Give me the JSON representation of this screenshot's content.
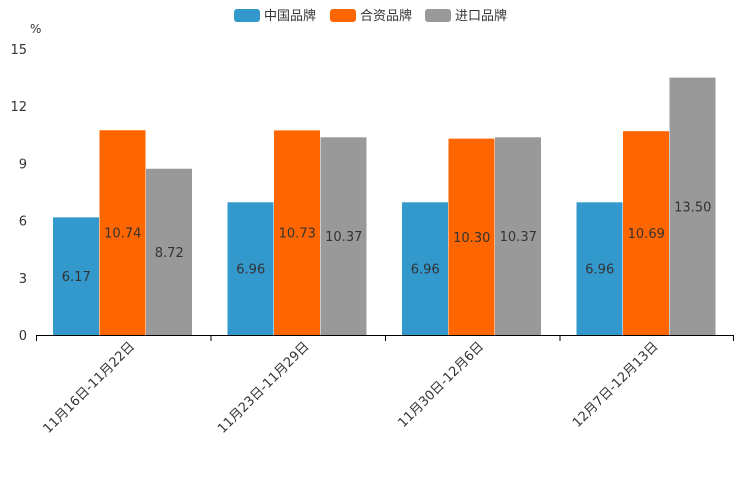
{
  "chart_data": {
    "type": "bar",
    "title": "",
    "ylabel": "%",
    "xlabel": "",
    "ylim": [
      0,
      15
    ],
    "yticks": [
      0,
      3,
      6,
      9,
      12,
      15
    ],
    "categories": [
      "11月16日-11月22日",
      "11月23日-11月29日",
      "11月30日-12月6日",
      "12月7日-12月13日"
    ],
    "series": [
      {
        "name": "中国品牌",
        "color": "#3399cc",
        "values": [
          6.17,
          6.96,
          6.96,
          6.96
        ],
        "labels": [
          "6.17",
          "6.96",
          "6.96",
          "6.96"
        ]
      },
      {
        "name": "合资品牌",
        "color": "#ff6600",
        "values": [
          10.74,
          10.73,
          10.3,
          10.69
        ],
        "labels": [
          "10.74",
          "10.73",
          "10.30",
          "10.69"
        ]
      },
      {
        "name": "进口品牌",
        "color": "#999999",
        "values": [
          8.72,
          10.37,
          10.37,
          13.5
        ],
        "labels": [
          "8.72",
          "10.37",
          "10.37",
          "13.50"
        ]
      }
    ],
    "legend_position": "top"
  }
}
